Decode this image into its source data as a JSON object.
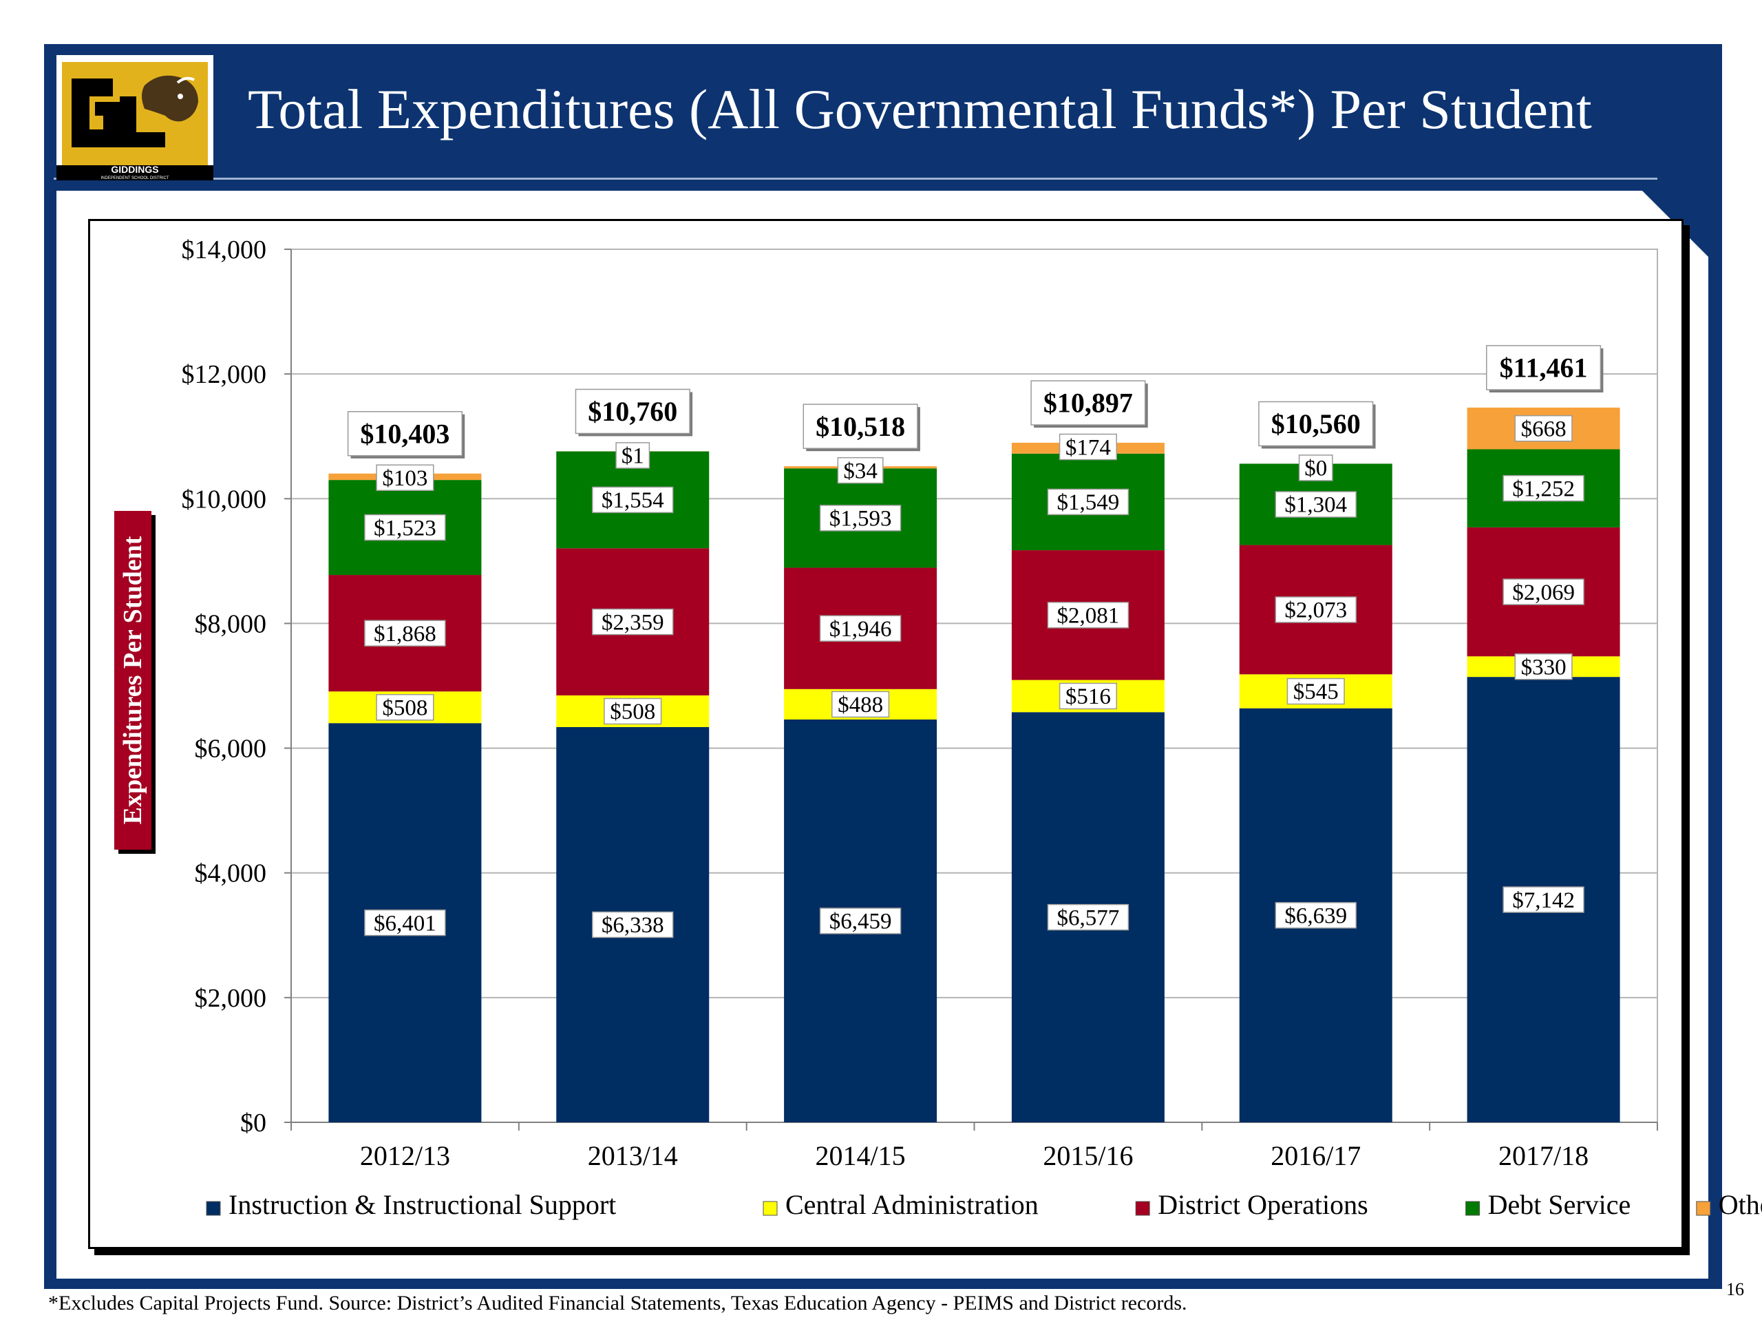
{
  "slide": {
    "title": "Total Expenditures (All Governmental Funds*) Per Student",
    "logo_text": "GIDDINGS",
    "logo_subtext": "INDEPENDENT SCHOOL DISTRICT",
    "footnote": "*Excludes Capital Projects Fund. Source: District’s Audited Financial Statements, Texas Education Agency - PEIMS and District records.",
    "page_number": "16"
  },
  "colors": {
    "frame": "#0d3471",
    "ylabel_background": "#a50021"
  },
  "chart_data": {
    "type": "bar",
    "stacked": true,
    "categories": [
      "2012/13",
      "2013/14",
      "2014/15",
      "2015/16",
      "2016/17",
      "2017/18"
    ],
    "ylabel": "Expenditures Per Student",
    "ylim": [
      0,
      14000
    ],
    "yticks": [
      0,
      2000,
      4000,
      6000,
      8000,
      10000,
      12000,
      14000
    ],
    "ytick_labels": [
      "$0",
      "$2,000",
      "$4,000",
      "$6,000",
      "$8,000",
      "$10,000",
      "$12,000",
      "$14,000"
    ],
    "grid": true,
    "legend_position": "bottom",
    "series": [
      {
        "name": "Instruction & Instructional Support",
        "color": "#002d62",
        "values": [
          6401,
          6338,
          6459,
          6577,
          6639,
          7142
        ],
        "labels": [
          "$6,401",
          "$6,338",
          "$6,459",
          "$6,577",
          "$6,639",
          "$7,142"
        ]
      },
      {
        "name": "Central Administration",
        "color": "#ffff00",
        "values": [
          508,
          508,
          488,
          516,
          545,
          330
        ],
        "labels": [
          "$508",
          "$508",
          "$488",
          "$516",
          "$545",
          "$330"
        ]
      },
      {
        "name": "District Operations",
        "color": "#a50021",
        "values": [
          1868,
          2359,
          1946,
          2081,
          2073,
          2069
        ],
        "labels": [
          "$1,868",
          "$2,359",
          "$1,946",
          "$2,081",
          "$2,073",
          "$2,069"
        ]
      },
      {
        "name": "Debt Service",
        "color": "#007a00",
        "values": [
          1523,
          1554,
          1593,
          1549,
          1304,
          1252
        ],
        "labels": [
          "$1,523",
          "$1,554",
          "$1,593",
          "$1,549",
          "$1,304",
          "$1,252"
        ]
      },
      {
        "name": "Other",
        "color": "#f7a13a",
        "values": [
          103,
          1,
          34,
          174,
          0,
          668
        ],
        "labels": [
          "$103",
          "$1",
          "$34",
          "$174",
          "$0",
          "$668"
        ]
      }
    ],
    "totals": [
      10403,
      10760,
      10518,
      10897,
      10560,
      11461
    ],
    "total_labels": [
      "$10,403",
      "$10,760",
      "$10,518",
      "$10,897",
      "$10,560",
      "$11,461"
    ]
  }
}
